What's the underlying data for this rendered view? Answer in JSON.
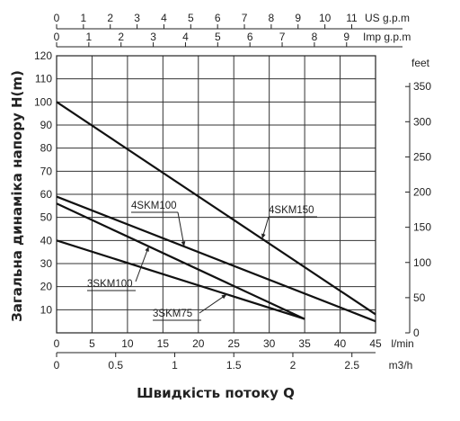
{
  "chart_data": {
    "type": "line",
    "title": "",
    "xlabel": "Швидкість потоку Q",
    "ylabel": "Загальна динаміка напору H(m)",
    "grid": true,
    "legend": "none",
    "x_unit": "l/min",
    "xlim": [
      0,
      45
    ],
    "ylim": [
      0,
      120
    ],
    "x_ticks": [
      "0",
      "5",
      "10",
      "15",
      "20",
      "25",
      "30",
      "35",
      "40",
      "45"
    ],
    "y_ticks": [
      "10",
      "20",
      "30",
      "40",
      "50",
      "60",
      "70",
      "80",
      "90",
      "100",
      "110",
      "120"
    ],
    "axis_us": {
      "unit": "US g.p.m",
      "ticks": [
        0,
        1,
        2,
        3,
        4,
        5,
        6,
        7,
        8,
        9,
        10,
        11
      ],
      "labels": [
        "0",
        "1",
        "2",
        "3",
        "4",
        "5",
        "6",
        "7",
        "8",
        "9",
        "10",
        "11"
      ]
    },
    "axis_imp": {
      "unit": "Imp g.p.m",
      "ticks": [
        0,
        1,
        2,
        3,
        4,
        5,
        6,
        7,
        8,
        9
      ],
      "labels": [
        "0",
        "1",
        "2",
        "3",
        "4",
        "5",
        "6",
        "7",
        "8",
        "9"
      ]
    },
    "axis_m3h": {
      "unit": "m3/h",
      "ticks": [
        0,
        0.5,
        1,
        1.5,
        2,
        2.5
      ],
      "labels": [
        "0",
        "0.5",
        "1",
        "1.5",
        "2",
        "2.5"
      ]
    },
    "axis_feet": {
      "unit": "feet",
      "ticks": [
        0,
        50,
        100,
        150,
        200,
        250,
        300,
        350
      ],
      "labels": [
        "0",
        "50",
        "100",
        "150",
        "200",
        "250",
        "300",
        "350"
      ]
    },
    "series": [
      {
        "name": "4SKM150",
        "x": [
          0,
          45
        ],
        "y": [
          100,
          8
        ]
      },
      {
        "name": "4SKM100",
        "x": [
          0,
          45
        ],
        "y": [
          59,
          5
        ]
      },
      {
        "name": "3SKM100",
        "x": [
          0,
          35
        ],
        "y": [
          56,
          6
        ]
      },
      {
        "name": "3SKM75",
        "x": [
          0,
          35
        ],
        "y": [
          40,
          6
        ]
      }
    ]
  }
}
